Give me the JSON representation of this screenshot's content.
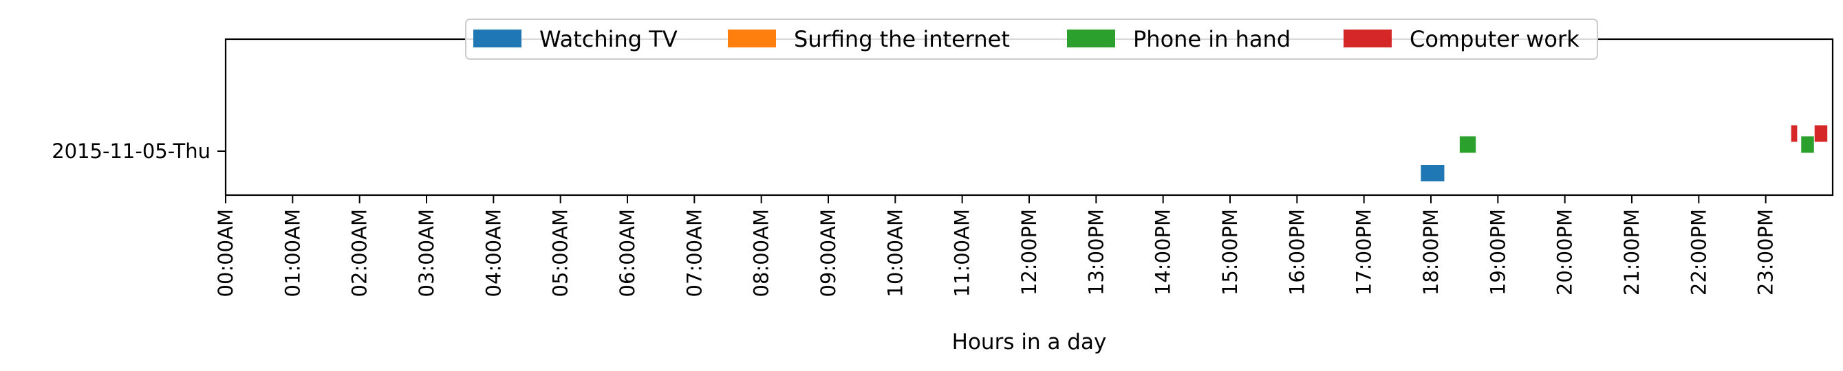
{
  "chart_data": {
    "type": "timeline",
    "xlabel": "Hours in a day",
    "ylabel": "",
    "xlim": [
      0,
      24
    ],
    "x_tick_labels": [
      "00:00AM",
      "01:00AM",
      "02:00AM",
      "03:00AM",
      "04:00AM",
      "05:00AM",
      "06:00AM",
      "07:00AM",
      "08:00AM",
      "09:00AM",
      "10:00AM",
      "11:00AM",
      "12:00PM",
      "13:00PM",
      "14:00PM",
      "15:00PM",
      "16:00PM",
      "17:00PM",
      "18:00PM",
      "19:00PM",
      "20:00PM",
      "21:00PM",
      "22:00PM",
      "23:00PM"
    ],
    "y_categories": [
      "2015-11-05-Thu"
    ],
    "legend_placement": "top-center",
    "series": [
      {
        "name": "Watching TV",
        "color": "#1f77b4",
        "level": -1,
        "intervals": [
          {
            "day": "2015-11-05-Thu",
            "start": 17.85,
            "end": 18.2
          }
        ]
      },
      {
        "name": "Surfing the internet",
        "color": "#ff7f0e",
        "level": 0,
        "intervals": []
      },
      {
        "name": "Phone in hand",
        "color": "#2ca02c",
        "level": 0.3,
        "intervals": [
          {
            "day": "2015-11-05-Thu",
            "start": 18.43,
            "end": 18.67
          },
          {
            "day": "2015-11-05-Thu",
            "start": 23.53,
            "end": 23.72
          }
        ]
      },
      {
        "name": "Computer work",
        "color": "#d62728",
        "level": 0.8,
        "intervals": [
          {
            "day": "2015-11-05-Thu",
            "start": 23.38,
            "end": 23.47
          },
          {
            "day": "2015-11-05-Thu",
            "start": 23.73,
            "end": 23.92
          }
        ]
      }
    ]
  }
}
